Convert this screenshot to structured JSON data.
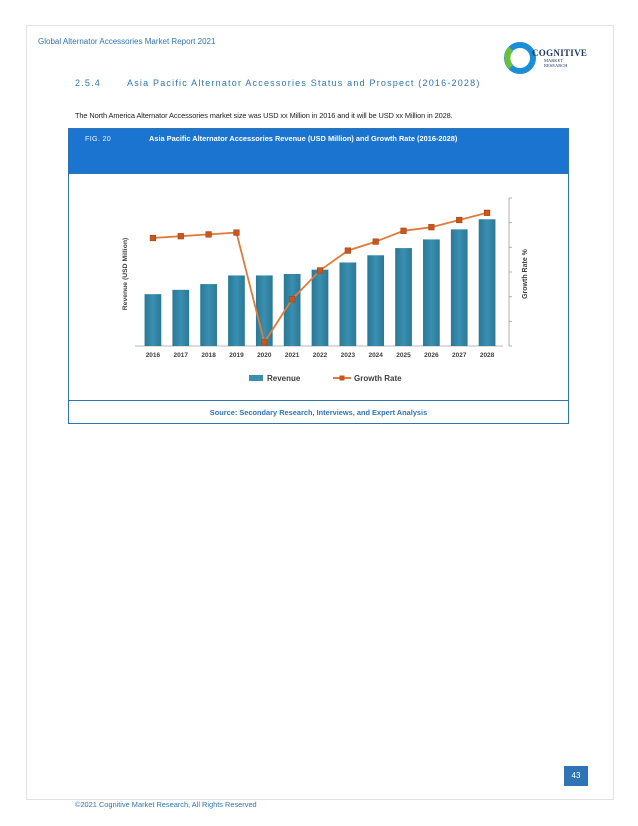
{
  "header": {
    "title": "Global Alternator Accessories Market Report 2021"
  },
  "logo": {
    "brand": "COGNITIVE",
    "sub1": "MARKET",
    "sub2": "RESEARCH",
    "colors": {
      "ring_blue": "#1b8fd6",
      "ring_green": "#6bbf3b",
      "text": "#1f3864"
    }
  },
  "section": {
    "number": "2.5.4",
    "title": "Asia Pacific Alternator Accessories Status and Prospect (2016-2028)"
  },
  "body_text": "The North America Alternator Accessories market size was USD xx Million in 2016 and it will be USD xx Million in 2028.",
  "figure": {
    "label": "FIG. 20",
    "title": "Asia Pacific Alternator Accessories Revenue (USD Million) and Growth Rate (2016-2028)",
    "source": "Source: Secondary Research, Interviews, and Expert Analysis"
  },
  "chart_data": {
    "type": "bar",
    "categories": [
      "2016",
      "2017",
      "2018",
      "2019",
      "2020",
      "2021",
      "2022",
      "2023",
      "2024",
      "2025",
      "2026",
      "2027",
      "2028"
    ],
    "ylabel": "Revenue (USD Million)",
    "ylabel_right": "Growth Rate %",
    "series": [
      {
        "name": "Revenue",
        "type": "bar",
        "axis": "left",
        "color": "#3a8fb0",
        "values": [
          36,
          39,
          43,
          49,
          49,
          50,
          53,
          58,
          63,
          68,
          74,
          81,
          88
        ]
      },
      {
        "name": "Growth Rate",
        "type": "line",
        "axis": "right",
        "color": "#e07b39",
        "values": [
          6.0,
          6.1,
          6.2,
          6.3,
          0.2,
          2.6,
          4.2,
          5.3,
          5.8,
          6.4,
          6.6,
          7.0,
          7.4
        ]
      }
    ],
    "left_ylim": [
      0,
      100
    ],
    "right_ylim": [
      0,
      8
    ],
    "grid": false,
    "legend": "bottom"
  },
  "page": {
    "number": "43",
    "copyright": "©2021 Cognitive Market Research, All Rights Reserved"
  }
}
